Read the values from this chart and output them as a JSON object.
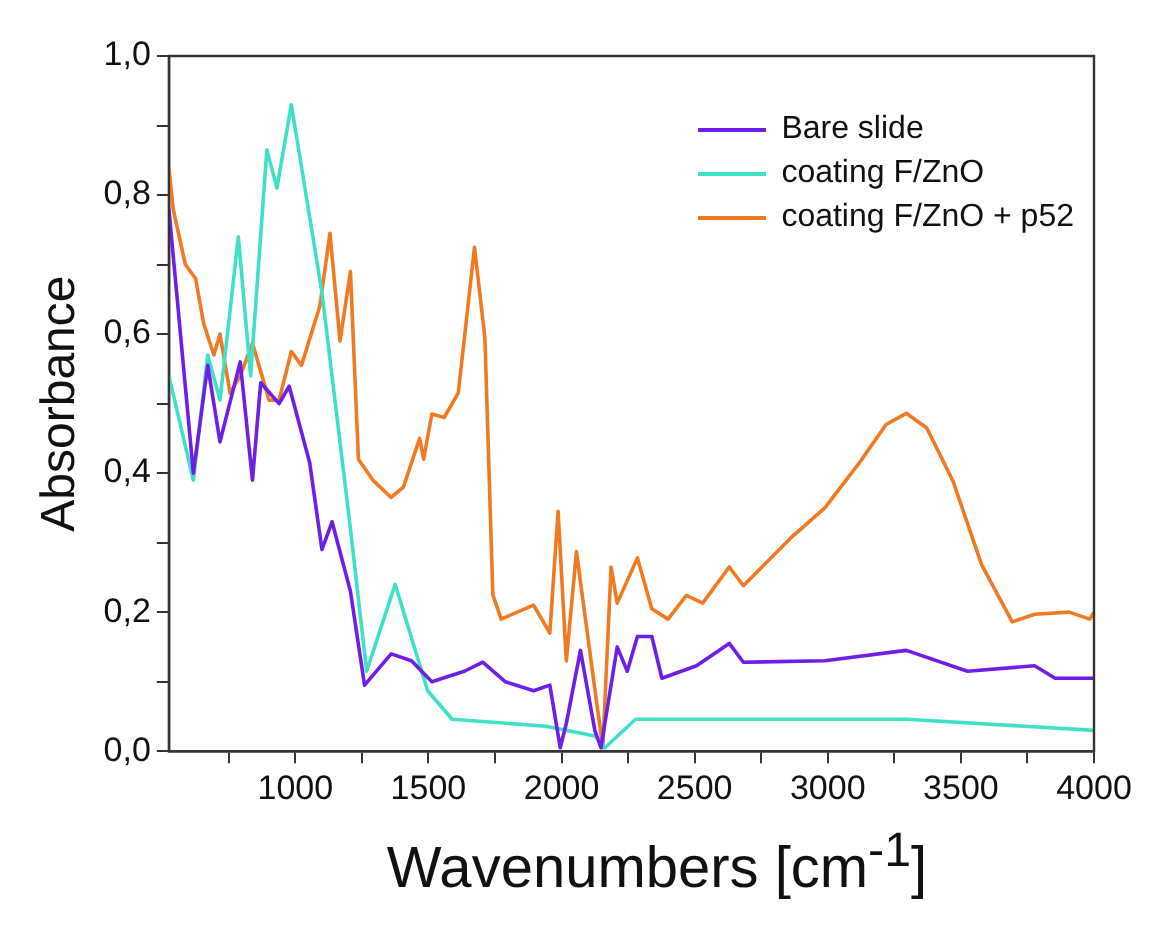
{
  "chart_data": {
    "type": "line",
    "xlabel": "Wavenumbers [cm$^{-1}$]",
    "ylabel": "Absorbance",
    "xlim": [
      525,
      4000
    ],
    "ylim": [
      0,
      1
    ],
    "xticks": [
      {
        "value": 750,
        "label": null
      },
      1000,
      {
        "value": 1250,
        "label": null
      },
      1500,
      {
        "value": 1750,
        "label": null
      },
      2000,
      {
        "value": 2250,
        "label": null
      },
      2500,
      {
        "value": 2750,
        "label": null
      },
      3000,
      {
        "value": 3250,
        "label": null
      },
      3500,
      {
        "value": 3750,
        "label": null
      },
      4000
    ],
    "yticks": [
      {
        "value": 0,
        "label": "0,0"
      },
      {
        "value": 0.1,
        "label": null
      },
      {
        "value": 0.2,
        "label": "0,2"
      },
      {
        "value": 0.3,
        "label": null
      },
      {
        "value": 0.4,
        "label": "0,4"
      },
      {
        "value": 0.5,
        "label": null
      },
      {
        "value": 0.6,
        "label": "0,6"
      },
      {
        "value": 0.7,
        "label": null
      },
      {
        "value": 0.8,
        "label": "0,8"
      },
      {
        "value": 0.9,
        "label": null
      },
      {
        "value": 1,
        "label": "1,0"
      }
    ],
    "grid": false,
    "legend": "top right",
    "marker": "none",
    "line_style": "solid",
    "series": [
      {
        "name": "Bare slide",
        "color": "#6f1ee8",
        "x": [
          525,
          617,
          671,
          717,
          793,
          839,
          870,
          939,
          977,
          1054,
          1100,
          1138,
          1207,
          1260,
          1360,
          1436,
          1513,
          1635,
          1704,
          1788,
          1895,
          1956,
          1995,
          2018,
          2071,
          2125,
          2148,
          2209,
          2247,
          2285,
          2339,
          2377,
          2507,
          2630,
          2683,
          2989,
          3295,
          3525,
          3777,
          3854,
          4000
        ],
        "values": [
          0.78,
          0.4,
          0.555,
          0.445,
          0.56,
          0.39,
          0.53,
          0.5,
          0.525,
          0.415,
          0.29,
          0.33,
          0.23,
          0.095,
          0.14,
          0.13,
          0.1,
          0.115,
          0.128,
          0.1,
          0.087,
          0.095,
          0.005,
          0.04,
          0.145,
          0.03,
          0.005,
          0.15,
          0.115,
          0.165,
          0.165,
          0.105,
          0.123,
          0.155,
          0.128,
          0.13,
          0.145,
          0.115,
          0.123,
          0.105,
          0.105
        ]
      },
      {
        "name": "coating F/ZnO",
        "color": "#40e0c8",
        "x": [
          525,
          617,
          671,
          717,
          786,
          832,
          893,
          931,
          985,
          1100,
          1207,
          1268,
          1375,
          1497,
          1589,
          1941,
          2125,
          2163,
          2278,
          2630,
          3295,
          4000
        ],
        "values": [
          0.54,
          0.39,
          0.57,
          0.505,
          0.74,
          0.54,
          0.865,
          0.81,
          0.93,
          0.66,
          0.32,
          0.115,
          0.24,
          0.087,
          0.046,
          0.036,
          0.022,
          0.005,
          0.046,
          0.046,
          0.046,
          0.03
        ]
      },
      {
        "name": "coating F/ZnO + p52",
        "color": "#f07a22",
        "x": [
          525,
          541,
          587,
          625,
          656,
          694,
          717,
          755,
          793,
          839,
          901,
          939,
          985,
          1023,
          1092,
          1130,
          1168,
          1207,
          1237,
          1291,
          1360,
          1406,
          1467,
          1482,
          1513,
          1559,
          1612,
          1673,
          1712,
          1742,
          1773,
          1895,
          1956,
          1987,
          2018,
          2056,
          2094,
          2155,
          2186,
          2209,
          2285,
          2339,
          2400,
          2469,
          2530,
          2630,
          2683,
          2859,
          2989,
          3119,
          3219,
          3295,
          3372,
          3471,
          3578,
          3693,
          3777,
          3907,
          3984,
          4000
        ],
        "values": [
          0.84,
          0.78,
          0.7,
          0.68,
          0.615,
          0.57,
          0.6,
          0.515,
          0.54,
          0.587,
          0.505,
          0.505,
          0.575,
          0.555,
          0.64,
          0.745,
          0.59,
          0.69,
          0.42,
          0.39,
          0.365,
          0.38,
          0.45,
          0.42,
          0.485,
          0.48,
          0.515,
          0.725,
          0.595,
          0.225,
          0.19,
          0.21,
          0.17,
          0.345,
          0.13,
          0.287,
          0.178,
          0.005,
          0.265,
          0.213,
          0.278,
          0.205,
          0.19,
          0.224,
          0.213,
          0.265,
          0.238,
          0.306,
          0.35,
          0.415,
          0.47,
          0.486,
          0.465,
          0.388,
          0.268,
          0.186,
          0.197,
          0.2,
          0.19,
          0.2
        ]
      }
    ]
  }
}
